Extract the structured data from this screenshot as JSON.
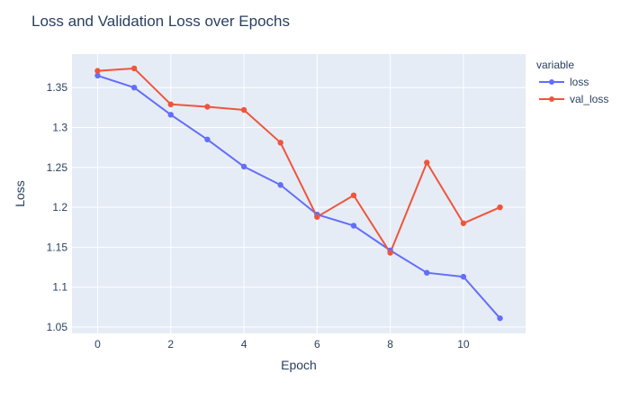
{
  "chart_data": {
    "type": "line",
    "title": "Loss and Validation Loss over Epochs",
    "xlabel": "Epoch",
    "ylabel": "Loss",
    "x": [
      0,
      1,
      2,
      3,
      4,
      5,
      6,
      7,
      8,
      9,
      10,
      11
    ],
    "xlim": [
      -0.7,
      11.7
    ],
    "ylim": [
      1.042,
      1.392
    ],
    "x_ticks": [
      0,
      2,
      4,
      6,
      8,
      10
    ],
    "y_ticks": [
      1.05,
      1.1,
      1.15,
      1.2,
      1.25,
      1.3,
      1.35
    ],
    "x_tick_labels": [
      "0",
      "2",
      "4",
      "6",
      "8",
      "10"
    ],
    "y_tick_labels": [
      "1.05",
      "1.1",
      "1.15",
      "1.2",
      "1.25",
      "1.3",
      "1.35"
    ],
    "grid": true,
    "legend": {
      "title": "variable",
      "placement": "top-right"
    },
    "series": [
      {
        "name": "loss",
        "color": "#636efa",
        "values": [
          1.365,
          1.35,
          1.316,
          1.285,
          1.251,
          1.228,
          1.191,
          1.177,
          1.146,
          1.118,
          1.113,
          1.061
        ]
      },
      {
        "name": "val_loss",
        "color": "#ef553b",
        "values": [
          1.371,
          1.374,
          1.329,
          1.326,
          1.322,
          1.281,
          1.188,
          1.215,
          1.143,
          1.256,
          1.18,
          1.2
        ]
      }
    ]
  }
}
